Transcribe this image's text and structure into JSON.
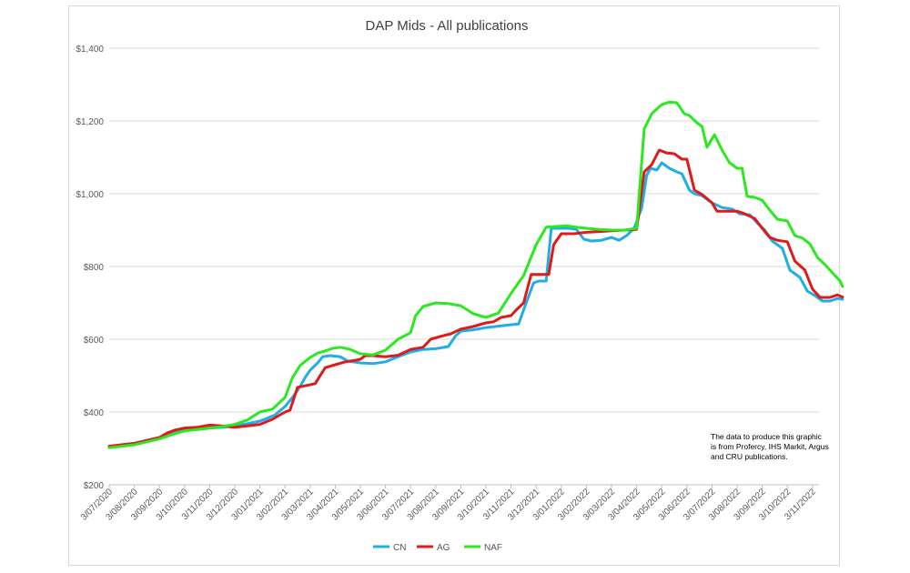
{
  "chart_data": {
    "type": "line",
    "title": "DAP Mids - All publications",
    "xlabel": "",
    "ylabel": "",
    "ylim": [
      200,
      1400
    ],
    "yticks": [
      200,
      400,
      600,
      800,
      1000,
      1200,
      1400
    ],
    "ytick_labels": [
      "$200",
      "$400",
      "$600",
      "$800",
      "$1,000",
      "$1,200",
      "$1,400"
    ],
    "xtick_labels": [
      "3/07/2020",
      "3/08/2020",
      "3/09/2020",
      "3/10/2020",
      "3/11/2020",
      "3/12/2020",
      "3/01/2021",
      "3/02/2021",
      "3/03/2021",
      "3/04/2021",
      "3/05/2021",
      "3/06/2021",
      "3/07/2021",
      "3/08/2021",
      "3/09/2021",
      "3/10/2021",
      "3/11/2021",
      "3/12/2021",
      "3/01/2022",
      "3/02/2022",
      "3/03/2022",
      "3/04/2022",
      "3/05/2022",
      "3/06/2022",
      "3/07/2022",
      "3/08/2022",
      "3/09/2022",
      "3/10/2022",
      "3/11/2022"
    ],
    "x_range_months": [
      0,
      29.2
    ],
    "grid": true,
    "legend_position": "bottom",
    "note": "The data to produce this graphic is from Profercy, IHS Markit, Argus and CRU publications.",
    "series": [
      {
        "name": "CN",
        "color": "#1faee6",
        "points": [
          [
            0,
            305
          ],
          [
            0.5,
            310
          ],
          [
            1,
            312
          ],
          [
            1.5,
            320
          ],
          [
            2,
            328
          ],
          [
            2.5,
            342
          ],
          [
            3,
            350
          ],
          [
            3.5,
            352
          ],
          [
            4,
            356
          ],
          [
            4.5,
            358
          ],
          [
            5,
            362
          ],
          [
            5.5,
            368
          ],
          [
            6,
            375
          ],
          [
            6.3,
            383
          ],
          [
            6.6,
            392
          ],
          [
            7,
            415
          ],
          [
            7.3,
            440
          ],
          [
            7.6,
            470
          ],
          [
            7.8,
            495
          ],
          [
            8,
            515
          ],
          [
            8.3,
            535
          ],
          [
            8.5,
            552
          ],
          [
            8.8,
            555
          ],
          [
            9.2,
            552
          ],
          [
            9.5,
            540
          ],
          [
            10,
            535
          ],
          [
            10.5,
            533
          ],
          [
            11,
            538
          ],
          [
            11.5,
            552
          ],
          [
            12,
            565
          ],
          [
            12.5,
            572
          ],
          [
            13,
            574
          ],
          [
            13.5,
            580
          ],
          [
            13.8,
            610
          ],
          [
            14,
            622
          ],
          [
            14.5,
            626
          ],
          [
            15,
            632
          ],
          [
            15.5,
            636
          ],
          [
            16,
            640
          ],
          [
            16.3,
            642
          ],
          [
            16.6,
            700
          ],
          [
            16.9,
            755
          ],
          [
            17.1,
            760
          ],
          [
            17.4,
            760
          ],
          [
            17.6,
            905
          ],
          [
            18,
            905
          ],
          [
            18.3,
            905
          ],
          [
            18.6,
            902
          ],
          [
            18.9,
            875
          ],
          [
            19.2,
            870
          ],
          [
            19.6,
            872
          ],
          [
            20,
            880
          ],
          [
            20.3,
            872
          ],
          [
            20.6,
            885
          ],
          [
            20.9,
            905
          ],
          [
            21.2,
            960
          ],
          [
            21.4,
            1050
          ],
          [
            21.55,
            1070
          ],
          [
            21.8,
            1065
          ],
          [
            22,
            1085
          ],
          [
            22.3,
            1070
          ],
          [
            22.6,
            1060
          ],
          [
            22.8,
            1055
          ],
          [
            23.1,
            1010
          ],
          [
            23.3,
            1000
          ],
          [
            23.6,
            995
          ],
          [
            24,
            975
          ],
          [
            24.4,
            962
          ],
          [
            24.8,
            958
          ],
          [
            25.1,
            945
          ],
          [
            25.5,
            942
          ],
          [
            25.8,
            920
          ],
          [
            26.1,
            900
          ],
          [
            26.4,
            870
          ],
          [
            26.8,
            850
          ],
          [
            27.1,
            790
          ],
          [
            27.5,
            770
          ],
          [
            27.8,
            732
          ],
          [
            28.1,
            720
          ],
          [
            28.4,
            705
          ],
          [
            28.7,
            705
          ],
          [
            29,
            712
          ],
          [
            29.2,
            710
          ]
        ]
      },
      {
        "name": "AG",
        "color": "#e01919",
        "points": [
          [
            0,
            306
          ],
          [
            0.5,
            310
          ],
          [
            1,
            314
          ],
          [
            1.5,
            322
          ],
          [
            2,
            330
          ],
          [
            2.3,
            342
          ],
          [
            2.6,
            350
          ],
          [
            3,
            356
          ],
          [
            3.5,
            358
          ],
          [
            4,
            364
          ],
          [
            4.5,
            362
          ],
          [
            5,
            358
          ],
          [
            5.5,
            362
          ],
          [
            6,
            366
          ],
          [
            6.5,
            380
          ],
          [
            7,
            400
          ],
          [
            7.2,
            405
          ],
          [
            7.5,
            468
          ],
          [
            7.8,
            472
          ],
          [
            8.2,
            478
          ],
          [
            8.6,
            522
          ],
          [
            9,
            530
          ],
          [
            9.4,
            538
          ],
          [
            9.8,
            542
          ],
          [
            10,
            545
          ],
          [
            10.2,
            555
          ],
          [
            10.5,
            555
          ],
          [
            11,
            552
          ],
          [
            11.5,
            556
          ],
          [
            12,
            572
          ],
          [
            12.5,
            578
          ],
          [
            12.8,
            600
          ],
          [
            13.2,
            608
          ],
          [
            13.6,
            615
          ],
          [
            14,
            628
          ],
          [
            14.5,
            635
          ],
          [
            15,
            645
          ],
          [
            15.3,
            648
          ],
          [
            15.6,
            660
          ],
          [
            16,
            665
          ],
          [
            16.2,
            680
          ],
          [
            16.5,
            700
          ],
          [
            16.8,
            778
          ],
          [
            17.2,
            778
          ],
          [
            17.5,
            778
          ],
          [
            17.7,
            860
          ],
          [
            18,
            890
          ],
          [
            18.5,
            890
          ],
          [
            19,
            894
          ],
          [
            19.5,
            896
          ],
          [
            20,
            898
          ],
          [
            20.5,
            900
          ],
          [
            21,
            902
          ],
          [
            21.3,
            1060
          ],
          [
            21.6,
            1080
          ],
          [
            21.9,
            1120
          ],
          [
            22.2,
            1112
          ],
          [
            22.5,
            1110
          ],
          [
            22.8,
            1095
          ],
          [
            23,
            1095
          ],
          [
            23.3,
            1010
          ],
          [
            23.6,
            998
          ],
          [
            24,
            975
          ],
          [
            24.2,
            952
          ],
          [
            24.6,
            952
          ],
          [
            25,
            952
          ],
          [
            25.3,
            945
          ],
          [
            25.7,
            932
          ],
          [
            26,
            905
          ],
          [
            26.3,
            880
          ],
          [
            26.6,
            872
          ],
          [
            27,
            868
          ],
          [
            27.3,
            815
          ],
          [
            27.7,
            790
          ],
          [
            28,
            738
          ],
          [
            28.3,
            715
          ],
          [
            28.7,
            715
          ],
          [
            29,
            722
          ],
          [
            29.2,
            716
          ]
        ]
      },
      {
        "name": "NAF",
        "color": "#2be820",
        "points": [
          [
            0,
            302
          ],
          [
            0.5,
            306
          ],
          [
            1,
            310
          ],
          [
            1.5,
            318
          ],
          [
            2,
            326
          ],
          [
            2.5,
            338
          ],
          [
            3,
            348
          ],
          [
            3.5,
            352
          ],
          [
            4,
            356
          ],
          [
            4.5,
            360
          ],
          [
            5,
            366
          ],
          [
            5.5,
            378
          ],
          [
            6,
            400
          ],
          [
            6.5,
            408
          ],
          [
            7,
            440
          ],
          [
            7.3,
            495
          ],
          [
            7.6,
            528
          ],
          [
            8,
            550
          ],
          [
            8.3,
            562
          ],
          [
            8.6,
            568
          ],
          [
            8.9,
            575
          ],
          [
            9.2,
            578
          ],
          [
            9.6,
            572
          ],
          [
            10,
            560
          ],
          [
            10.5,
            557
          ],
          [
            11,
            570
          ],
          [
            11.5,
            600
          ],
          [
            12,
            618
          ],
          [
            12.2,
            665
          ],
          [
            12.5,
            690
          ],
          [
            13,
            700
          ],
          [
            13.5,
            698
          ],
          [
            14,
            692
          ],
          [
            14.5,
            670
          ],
          [
            15,
            660
          ],
          [
            15.5,
            672
          ],
          [
            16,
            726
          ],
          [
            16.5,
            775
          ],
          [
            17,
            860
          ],
          [
            17.4,
            908
          ],
          [
            17.8,
            910
          ],
          [
            18.2,
            912
          ],
          [
            18.6,
            908
          ],
          [
            19,
            905
          ],
          [
            19.5,
            902
          ],
          [
            20,
            900
          ],
          [
            20.5,
            900
          ],
          [
            21,
            905
          ],
          [
            21.3,
            1178
          ],
          [
            21.6,
            1220
          ],
          [
            22,
            1245
          ],
          [
            22.3,
            1252
          ],
          [
            22.6,
            1250
          ],
          [
            22.9,
            1220
          ],
          [
            23.1,
            1215
          ],
          [
            23.4,
            1195
          ],
          [
            23.6,
            1185
          ],
          [
            23.8,
            1128
          ],
          [
            24.1,
            1162
          ],
          [
            24.4,
            1120
          ],
          [
            24.7,
            1085
          ],
          [
            25,
            1070
          ],
          [
            25.2,
            1070
          ],
          [
            25.4,
            993
          ],
          [
            25.7,
            990
          ],
          [
            26,
            982
          ],
          [
            26.3,
            955
          ],
          [
            26.6,
            930
          ],
          [
            27,
            925
          ],
          [
            27.3,
            885
          ],
          [
            27.6,
            878
          ],
          [
            27.9,
            862
          ],
          [
            28.2,
            825
          ],
          [
            28.5,
            805
          ],
          [
            28.9,
            775
          ],
          [
            29.1,
            760
          ],
          [
            29.2,
            745
          ]
        ]
      }
    ]
  }
}
